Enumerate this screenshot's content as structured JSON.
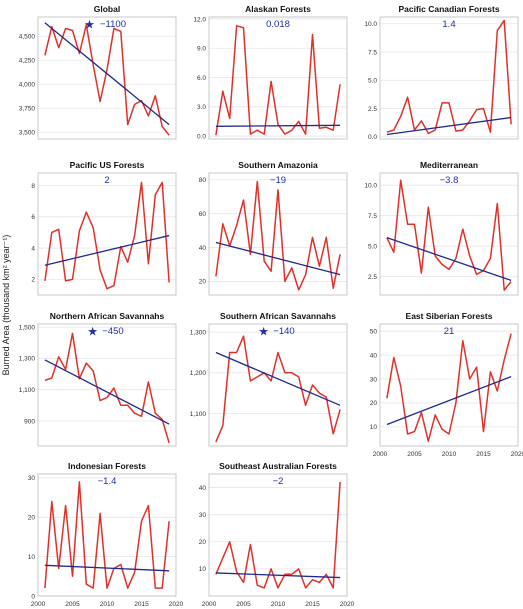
{
  "figure": {
    "ylabel": "Burned Area (thousand km² year⁻¹)",
    "colors": {
      "observed": "#e0302a",
      "trend": "#1f2a8c",
      "annotation": "#1f2fa8",
      "grid": "#e6e6e6",
      "frame": "#bdbdbd"
    }
  },
  "chart_data": [
    {
      "type": "line",
      "title": "Global",
      "trend_label": "−1100",
      "significant": true,
      "x": [
        2001,
        2002,
        2003,
        2004,
        2005,
        2006,
        2007,
        2008,
        2009,
        2010,
        2011,
        2012,
        2013,
        2014,
        2015,
        2016,
        2017,
        2018,
        2019
      ],
      "values": [
        4300,
        4600,
        4380,
        4580,
        4560,
        4320,
        4620,
        4200,
        3820,
        4150,
        4580,
        4550,
        3580,
        3790,
        3830,
        3670,
        3880,
        3560,
        3470
      ],
      "trend_line": [
        [
          2001,
          4640
        ],
        [
          2019,
          3580
        ]
      ],
      "xlim": [
        2000,
        2020
      ],
      "ylim": [
        3430,
        4700
      ],
      "yticks": [
        3500,
        3750,
        4000,
        4250,
        4500
      ],
      "ytick_labels": [
        "3,500",
        "3,750",
        "4,000",
        "4,250",
        "4,500"
      ],
      "xticks": [],
      "xtick_labels": []
    },
    {
      "type": "line",
      "title": "Alaskan Forests",
      "trend_label": "0.018",
      "significant": false,
      "x": [
        2001,
        2002,
        2003,
        2004,
        2005,
        2006,
        2007,
        2008,
        2009,
        2010,
        2011,
        2012,
        2013,
        2014,
        2015,
        2016,
        2017,
        2018,
        2019
      ],
      "values": [
        0.1,
        4.6,
        1.8,
        11.3,
        11.1,
        0.2,
        0.6,
        0.2,
        5.6,
        1.2,
        0.2,
        0.6,
        1.5,
        0.2,
        10.4,
        0.8,
        0.9,
        0.6,
        5.3
      ],
      "trend_line": [
        [
          2001,
          1.0
        ],
        [
          2019,
          1.1
        ]
      ],
      "xlim": [
        2000,
        2020
      ],
      "ylim": [
        -0.3,
        12.2
      ],
      "yticks": [
        0,
        3,
        6,
        9,
        12
      ],
      "ytick_labels": [
        "0.0",
        "3.0",
        "6.0",
        "9.0",
        "12.0"
      ],
      "xticks": [],
      "xtick_labels": []
    },
    {
      "type": "line",
      "title": "Pacific Canadian Forests",
      "trend_label": "1.4",
      "significant": false,
      "x": [
        2001,
        2002,
        2003,
        2004,
        2005,
        2006,
        2007,
        2008,
        2009,
        2010,
        2011,
        2012,
        2013,
        2014,
        2015,
        2016,
        2017,
        2018,
        2019
      ],
      "values": [
        0.4,
        0.6,
        1.8,
        3.5,
        0.6,
        1.4,
        0.3,
        0.6,
        3.0,
        3.0,
        0.5,
        0.6,
        1.4,
        2.4,
        2.5,
        0.4,
        9.4,
        10.3,
        1.1
      ],
      "trend_line": [
        [
          2001,
          0.2
        ],
        [
          2019,
          1.7
        ]
      ],
      "xlim": [
        2000,
        2020
      ],
      "ylim": [
        -0.2,
        10.6
      ],
      "yticks": [
        0,
        2.5,
        5,
        7.5,
        10
      ],
      "ytick_labels": [
        "0.0",
        "2.5",
        "5.0",
        "7.5",
        "10.0"
      ],
      "xticks": [],
      "xtick_labels": []
    },
    {
      "type": "line",
      "title": "Pacific US Forests",
      "trend_label": "2",
      "significant": false,
      "x": [
        2001,
        2002,
        2003,
        2004,
        2005,
        2006,
        2007,
        2008,
        2009,
        2010,
        2011,
        2012,
        2013,
        2014,
        2015,
        2016,
        2017,
        2018,
        2019
      ],
      "values": [
        1.9,
        5.0,
        5.2,
        1.9,
        2.0,
        5.1,
        6.3,
        5.3,
        2.6,
        1.4,
        1.6,
        4.1,
        3.1,
        4.8,
        8.2,
        3.0,
        7.4,
        8.2,
        1.8
      ],
      "trend_line": [
        [
          2001,
          2.9
        ],
        [
          2019,
          4.8
        ]
      ],
      "xlim": [
        2000,
        2020
      ],
      "ylim": [
        1.0,
        8.8
      ],
      "yticks": [
        2,
        4,
        6,
        8
      ],
      "ytick_labels": [
        "2",
        "4",
        "6",
        "8"
      ],
      "xticks": [],
      "xtick_labels": []
    },
    {
      "type": "line",
      "title": "Southern Amazonia",
      "trend_label": "−19",
      "significant": false,
      "x": [
        2001,
        2002,
        2003,
        2004,
        2005,
        2006,
        2007,
        2008,
        2009,
        2010,
        2011,
        2012,
        2013,
        2014,
        2015,
        2016,
        2017,
        2018,
        2019
      ],
      "values": [
        23,
        54,
        41,
        53,
        68,
        36,
        79,
        32,
        26,
        74,
        20,
        28,
        15,
        24,
        46,
        29,
        46,
        16,
        36
      ],
      "trend_line": [
        [
          2001,
          43
        ],
        [
          2019,
          24
        ]
      ],
      "xlim": [
        2000,
        2020
      ],
      "ylim": [
        12,
        84
      ],
      "yticks": [
        20,
        40,
        60,
        80
      ],
      "ytick_labels": [
        "20",
        "40",
        "60",
        "80"
      ],
      "xticks": [],
      "xtick_labels": []
    },
    {
      "type": "line",
      "title": "Mediterranean",
      "trend_label": "−3.8",
      "significant": false,
      "x": [
        2001,
        2002,
        2003,
        2004,
        2005,
        2006,
        2007,
        2008,
        2009,
        2010,
        2011,
        2012,
        2013,
        2014,
        2015,
        2016,
        2017,
        2018,
        2019
      ],
      "values": [
        5.7,
        4.5,
        10.4,
        6.8,
        6.8,
        2.8,
        8.2,
        4.2,
        3.5,
        3.1,
        4.0,
        6.4,
        4.2,
        2.7,
        3.0,
        4.0,
        8.5,
        1.4,
        2.1
      ],
      "trend_line": [
        [
          2001,
          5.7
        ],
        [
          2019,
          2.2
        ]
      ],
      "xlim": [
        2000,
        2020
      ],
      "ylim": [
        1.0,
        11.0
      ],
      "yticks": [
        2.5,
        5,
        7.5,
        10
      ],
      "ytick_labels": [
        "2.5",
        "5.0",
        "7.5",
        "10.0"
      ],
      "xticks": [],
      "xtick_labels": []
    },
    {
      "type": "line",
      "title": "Northern African Savannahs",
      "trend_label": "−450",
      "significant": true,
      "x": [
        2001,
        2002,
        2003,
        2004,
        2005,
        2006,
        2007,
        2008,
        2009,
        2010,
        2011,
        2012,
        2013,
        2014,
        2015,
        2016,
        2017,
        2018,
        2019
      ],
      "values": [
        1160,
        1175,
        1310,
        1230,
        1460,
        1170,
        1270,
        1220,
        1030,
        1050,
        1110,
        1000,
        1000,
        950,
        930,
        1150,
        950,
        910,
        760
      ],
      "trend_line": [
        [
          2001,
          1290
        ],
        [
          2019,
          880
        ]
      ],
      "xlim": [
        2000,
        2020
      ],
      "ylim": [
        740,
        1520
      ],
      "yticks": [
        900,
        1100,
        1300,
        1500
      ],
      "ytick_labels": [
        "900",
        "1,100",
        "1,300",
        "1,500"
      ],
      "xticks": [],
      "xtick_labels": []
    },
    {
      "type": "line",
      "title": "Southern African Savannahs",
      "trend_label": "−140",
      "significant": true,
      "x": [
        2001,
        2002,
        2003,
        2004,
        2005,
        2006,
        2007,
        2008,
        2009,
        2010,
        2011,
        2012,
        2013,
        2014,
        2015,
        2016,
        2017,
        2018,
        2019
      ],
      "values": [
        1030,
        1070,
        1250,
        1250,
        1290,
        1180,
        1190,
        1200,
        1180,
        1250,
        1200,
        1200,
        1190,
        1120,
        1170,
        1150,
        1140,
        1050,
        1110
      ],
      "trend_line": [
        [
          2001,
          1250
        ],
        [
          2019,
          1120
        ]
      ],
      "xlim": [
        2000,
        2020
      ],
      "ylim": [
        1020,
        1320
      ],
      "yticks": [
        1100,
        1200,
        1300
      ],
      "ytick_labels": [
        "1,100",
        "1,200",
        "1,300"
      ],
      "xticks": [],
      "xtick_labels": []
    },
    {
      "type": "line",
      "title": "East Siberian Forests",
      "trend_label": "21",
      "significant": false,
      "x": [
        2001,
        2002,
        2003,
        2004,
        2005,
        2006,
        2007,
        2008,
        2009,
        2010,
        2011,
        2012,
        2013,
        2014,
        2015,
        2016,
        2017,
        2018,
        2019
      ],
      "values": [
        22,
        39,
        27,
        7,
        8,
        16,
        4,
        15,
        9,
        7,
        20,
        46,
        30,
        35,
        8,
        33,
        25,
        38,
        49
      ],
      "trend_line": [
        [
          2001,
          11
        ],
        [
          2019,
          31
        ]
      ],
      "xlim": [
        2000,
        2020
      ],
      "ylim": [
        2,
        53
      ],
      "yticks": [
        10,
        20,
        30,
        40,
        50
      ],
      "ytick_labels": [
        "10",
        "20",
        "30",
        "40",
        "50"
      ],
      "xticks": [
        2000,
        2005,
        2010,
        2015,
        2020
      ],
      "xtick_labels": [
        "2000",
        "2005",
        "2010",
        "2015",
        "2020"
      ]
    },
    {
      "type": "line",
      "title": "Indonesian Forests",
      "trend_label": "−1.4",
      "significant": false,
      "x": [
        2001,
        2002,
        2003,
        2004,
        2005,
        2006,
        2007,
        2008,
        2009,
        2010,
        2011,
        2012,
        2013,
        2014,
        2015,
        2016,
        2017,
        2018,
        2019
      ],
      "values": [
        2,
        24,
        7,
        23,
        5,
        29,
        3,
        2,
        21,
        2,
        7,
        8,
        2,
        6,
        19,
        23,
        2,
        2,
        19
      ],
      "trend_line": [
        [
          2001,
          7.8
        ],
        [
          2019,
          6.4
        ]
      ],
      "xlim": [
        2000,
        2020
      ],
      "ylim": [
        0,
        31
      ],
      "yticks": [
        0,
        10,
        20,
        30
      ],
      "ytick_labels": [
        "0",
        "10",
        "20",
        "30"
      ],
      "xticks": [
        2000,
        2005,
        2010,
        2015,
        2020
      ],
      "xtick_labels": [
        "2000",
        "2005",
        "2010",
        "2015",
        "2020"
      ]
    },
    {
      "type": "line",
      "title": "Southeast Australian Forests",
      "trend_label": "−2",
      "significant": false,
      "x": [
        2001,
        2002,
        2003,
        2004,
        2005,
        2006,
        2007,
        2008,
        2009,
        2010,
        2011,
        2012,
        2013,
        2014,
        2015,
        2016,
        2017,
        2018,
        2019
      ],
      "values": [
        8,
        14,
        20,
        9,
        5,
        19,
        4,
        3,
        10,
        3,
        8,
        8,
        10,
        3,
        6,
        5,
        8,
        3,
        42
      ],
      "trend_line": [
        [
          2001,
          8.5
        ],
        [
          2019,
          6.8
        ]
      ],
      "xlim": [
        2000,
        2020
      ],
      "ylim": [
        0,
        45
      ],
      "yticks": [
        10,
        20,
        30,
        40
      ],
      "ytick_labels": [
        "10",
        "20",
        "30",
        "40"
      ],
      "xticks": [
        2000,
        2005,
        2010,
        2015,
        2020
      ],
      "xtick_labels": [
        "2000",
        "2005",
        "2010",
        "2015",
        "2020"
      ]
    }
  ]
}
